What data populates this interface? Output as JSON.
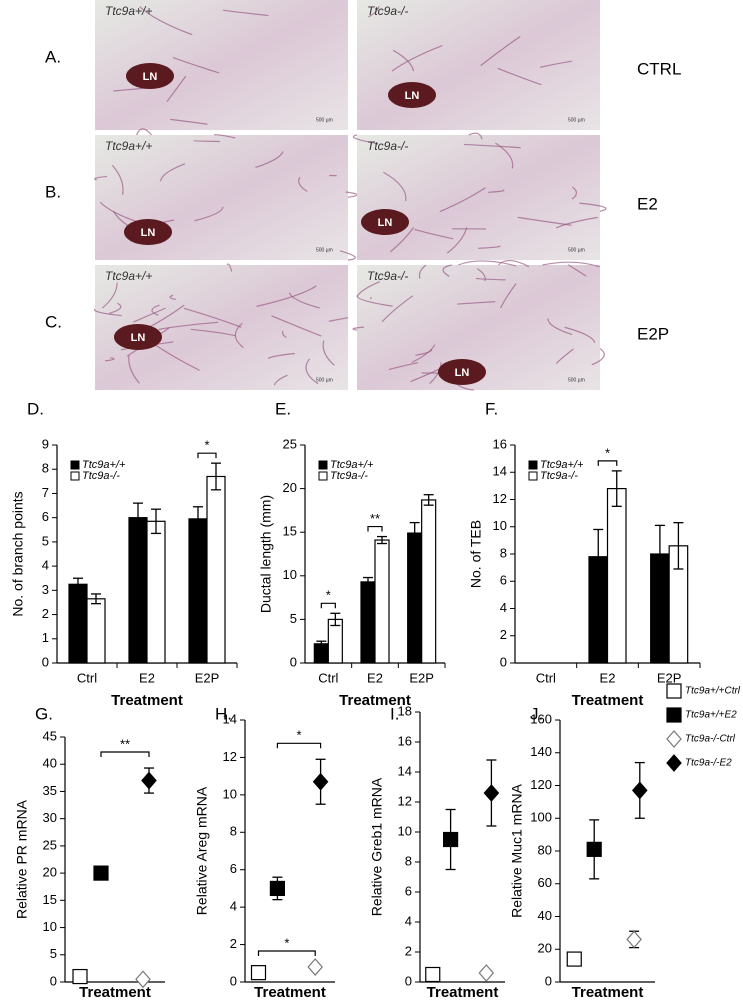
{
  "panels": {
    "rows": [
      {
        "label": "A.",
        "condition": "CTRL"
      },
      {
        "label": "B.",
        "condition": "E2"
      },
      {
        "label": "C.",
        "condition": "E2P"
      }
    ],
    "genotypes": [
      "Ttc9a+/+",
      "Ttc9a-/-"
    ],
    "node_label": "LN",
    "scale_bar": "500 µm"
  },
  "legend": [
    {
      "name": "Ttc9a+/+Ctrl",
      "marker": "square",
      "fill": "#ffffff"
    },
    {
      "name": "Ttc9a+/+E2",
      "marker": "square",
      "fill": "#000000"
    },
    {
      "name": "Ttc9a-/-Ctrl",
      "marker": "diamond",
      "fill": "#ffffff"
    },
    {
      "name": "Ttc9a-/-E2",
      "marker": "diamond",
      "fill": "#000000"
    }
  ],
  "chart_data": [
    {
      "type": "bar",
      "label": "D.",
      "y_label": "No. of branch points",
      "x_label": "Treatment",
      "categories": [
        "Ctrl",
        "E2",
        "E2P"
      ],
      "ylim": [
        0,
        9
      ],
      "yticks": [
        0,
        1,
        2,
        3,
        4,
        5,
        6,
        7,
        8,
        9
      ],
      "legend_corner": "top-left",
      "series": [
        {
          "name": "Ttc9a+/+",
          "color": "#000000",
          "values": [
            3.25,
            6.0,
            5.95
          ],
          "errors": [
            0.25,
            0.6,
            0.5
          ]
        },
        {
          "name": "Ttc9a-/-",
          "color": "#ffffff",
          "values": [
            2.65,
            5.85,
            7.7
          ],
          "errors": [
            0.2,
            0.5,
            0.55
          ]
        }
      ],
      "annotations": [
        {
          "text": "*",
          "category": 2
        }
      ]
    },
    {
      "type": "bar",
      "label": "E.",
      "y_label": "Ductal length (mm)",
      "x_label": "Treatment",
      "categories": [
        "Ctrl",
        "E2",
        "E2P"
      ],
      "ylim": [
        0,
        25
      ],
      "yticks": [
        0,
        5,
        10,
        15,
        20,
        25
      ],
      "legend_corner": "top-left",
      "series": [
        {
          "name": "Ttc9a+/+",
          "color": "#000000",
          "values": [
            2.2,
            9.3,
            14.9
          ],
          "errors": [
            0.3,
            0.5,
            1.2
          ]
        },
        {
          "name": "Ttc9a-/-",
          "color": "#ffffff",
          "values": [
            5.0,
            14.1,
            18.7
          ],
          "errors": [
            0.7,
            0.4,
            0.6
          ]
        }
      ],
      "annotations": [
        {
          "text": "*",
          "category": 0
        },
        {
          "text": "**",
          "category": 1
        }
      ]
    },
    {
      "type": "bar",
      "label": "F.",
      "y_label": "No. of TEB",
      "x_label": "Treatment",
      "categories": [
        "Ctrl",
        "E2",
        "E2P"
      ],
      "ylim": [
        0,
        16
      ],
      "yticks": [
        0,
        2,
        4,
        6,
        8,
        10,
        12,
        14,
        16
      ],
      "legend_corner": "top-left",
      "series": [
        {
          "name": "Ttc9a+/+",
          "color": "#000000",
          "values": [
            null,
            7.8,
            8.0
          ],
          "errors": [
            null,
            2.0,
            2.1
          ]
        },
        {
          "name": "Ttc9a-/-",
          "color": "#ffffff",
          "values": [
            null,
            12.8,
            8.6
          ],
          "errors": [
            null,
            1.3,
            1.7
          ]
        }
      ],
      "annotations": [
        {
          "text": "*",
          "category": 1
        }
      ]
    },
    {
      "type": "dot",
      "label": "G.",
      "y_label": "Relative PR mRNA",
      "x_label": "Treatment",
      "ylim": [
        0,
        45
      ],
      "yticks": [
        0,
        5,
        10,
        15,
        20,
        25,
        30,
        35,
        40,
        45
      ],
      "values": [
        1,
        20,
        0.5,
        37
      ],
      "errors": [
        null,
        null,
        null,
        2.3
      ],
      "annotations": [
        {
          "text": "**",
          "between": [
            1,
            3
          ]
        }
      ]
    },
    {
      "type": "dot",
      "label": "H.",
      "y_label": "Relative Areg mRNA",
      "x_label": "Treatment",
      "ylim": [
        0,
        14
      ],
      "yticks": [
        0,
        2,
        4,
        6,
        8,
        10,
        12,
        14
      ],
      "values": [
        0.5,
        5.0,
        0.8,
        10.7
      ],
      "errors": [
        null,
        0.6,
        null,
        1.2
      ],
      "annotations": [
        {
          "text": "*",
          "between": [
            0,
            2
          ]
        },
        {
          "text": "*",
          "between": [
            1,
            3
          ]
        }
      ]
    },
    {
      "type": "dot",
      "label": "I.",
      "y_label": "Relative Greb1 mRNA",
      "x_label": "Treatment",
      "ylim": [
        0,
        18
      ],
      "yticks": [
        0,
        2,
        4,
        6,
        8,
        10,
        12,
        14,
        16,
        18
      ],
      "values": [
        0.5,
        9.5,
        0.6,
        12.6
      ],
      "errors": [
        null,
        2.0,
        null,
        2.2
      ],
      "annotations": []
    },
    {
      "type": "dot",
      "label": "J.",
      "y_label": "Relative Muc1 mRNA",
      "x_label": "Treatment",
      "ylim": [
        0,
        160
      ],
      "yticks": [
        0,
        20,
        40,
        60,
        80,
        100,
        120,
        140,
        160
      ],
      "values": [
        14,
        81,
        26,
        117
      ],
      "errors": [
        null,
        18,
        5,
        17
      ],
      "annotations": []
    }
  ]
}
